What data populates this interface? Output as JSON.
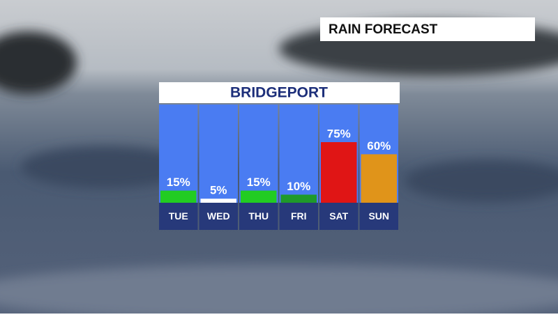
{
  "header": {
    "title": "RAIN FORECAST"
  },
  "chart_data": {
    "type": "bar",
    "title": "BRIDGEPORT",
    "categories": [
      "TUE",
      "WED",
      "THU",
      "FRI",
      "SAT",
      "SUN"
    ],
    "values": [
      15,
      5,
      15,
      10,
      75,
      60
    ],
    "value_labels": [
      "15%",
      "5%",
      "15%",
      "10%",
      "75%",
      "60%"
    ],
    "colors": [
      "#22cc22",
      "#ffffff",
      "#22cc22",
      "#1f9a2a",
      "#e01515",
      "#e0941a"
    ]
  }
}
